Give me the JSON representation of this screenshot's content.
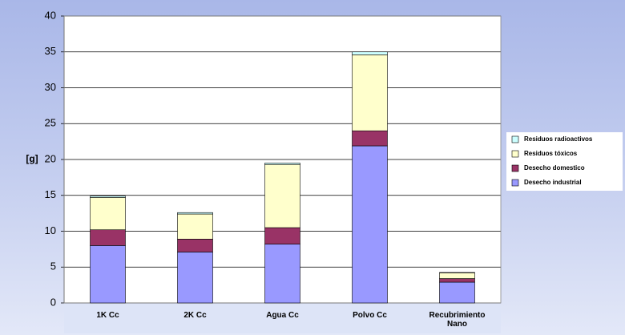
{
  "chart_data": {
    "type": "stacked_bar",
    "ylabel": "[g]",
    "categories": [
      "1K Cc",
      "2K Cc",
      "Agua Cc",
      "Polvo Cc",
      "Recubrimiento Nano"
    ],
    "series": [
      {
        "name": "Desecho industrial",
        "color": "#9999ff",
        "values": [
          8.0,
          7.1,
          8.2,
          21.9,
          2.9
        ]
      },
      {
        "name": "Desecho domestico",
        "color": "#993366",
        "values": [
          2.2,
          1.8,
          2.3,
          2.1,
          0.5
        ]
      },
      {
        "name": "Residuos tóxicos",
        "color": "#ffffcc",
        "values": [
          4.5,
          3.5,
          8.8,
          10.6,
          0.8
        ]
      },
      {
        "name": "Residuos radioactivos",
        "color": "#ccffff",
        "values": [
          0.2,
          0.2,
          0.2,
          0.4,
          0.05
        ]
      }
    ],
    "ylim": [
      0,
      40
    ],
    "yticks": [
      0,
      5,
      10,
      15,
      20,
      25,
      30,
      35,
      40
    ],
    "grid": true,
    "legend": "right"
  }
}
